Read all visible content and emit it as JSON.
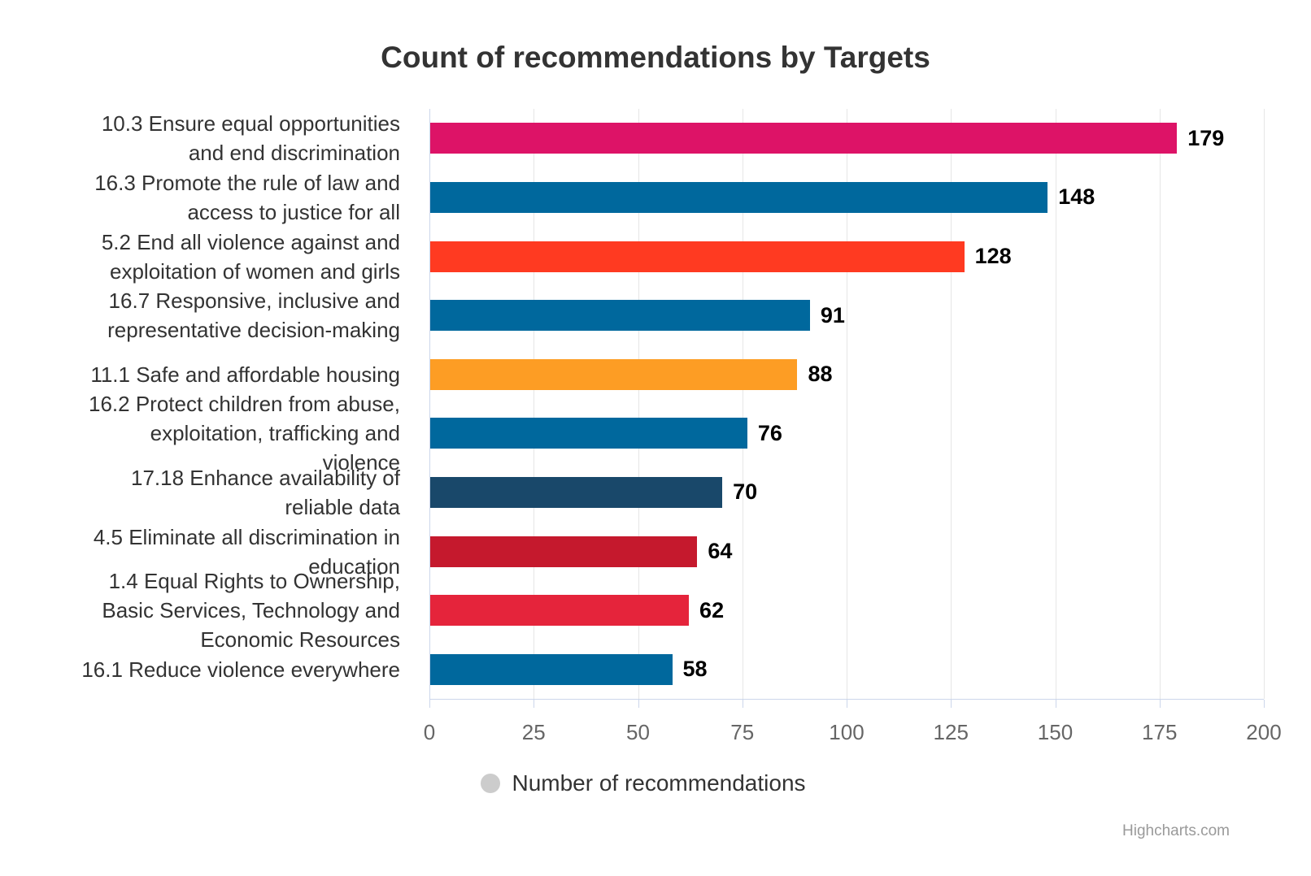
{
  "title": "Count of recommendations by Targets",
  "legend": {
    "label": "Number of recommendations",
    "marker_color": "#cccccc"
  },
  "credit": "Highcharts.com",
  "colors": {
    "grid": "#e6e6e6",
    "axis": "#ccd6eb",
    "title_text": "#333333",
    "category_text": "#333333",
    "tick_text": "#666666",
    "value_text": "#000000"
  },
  "chart_data": {
    "type": "bar",
    "orientation": "horizontal",
    "title": "Count of recommendations by Targets",
    "series_name": "Number of recommendations",
    "categories": [
      "10.3 Ensure equal opportunities\nand end discrimination",
      "16.3 Promote the rule of law and\naccess to justice for all",
      "5.2 End all violence against and\nexploitation of women and girls",
      "16.7 Responsive, inclusive and\nrepresentative decision-making",
      "11.1 Safe and affordable housing",
      "16.2 Protect children from abuse,\nexploitation, trafficking and\nviolence",
      "17.18 Enhance availability of\nreliable data",
      "4.5 Eliminate all discrimination in\neducation",
      "1.4 Equal Rights to Ownership,\nBasic Services, Technology and\nEconomic Resources",
      "16.1 Reduce violence everywhere"
    ],
    "values": [
      179,
      148,
      128,
      91,
      88,
      76,
      70,
      64,
      62,
      58
    ],
    "bar_colors": [
      "#DD1367",
      "#00689D",
      "#FF3A21",
      "#00689D",
      "#FD9D24",
      "#00689D",
      "#19486A",
      "#C5192D",
      "#E5243B",
      "#00689D"
    ],
    "xlabel": "",
    "ylabel": "",
    "xlim": [
      0,
      200
    ],
    "axis_ticks": [
      0,
      25,
      50,
      75,
      100,
      125,
      150,
      175,
      200
    ],
    "grid": true,
    "legend_position": "bottom",
    "data_labels": true
  }
}
